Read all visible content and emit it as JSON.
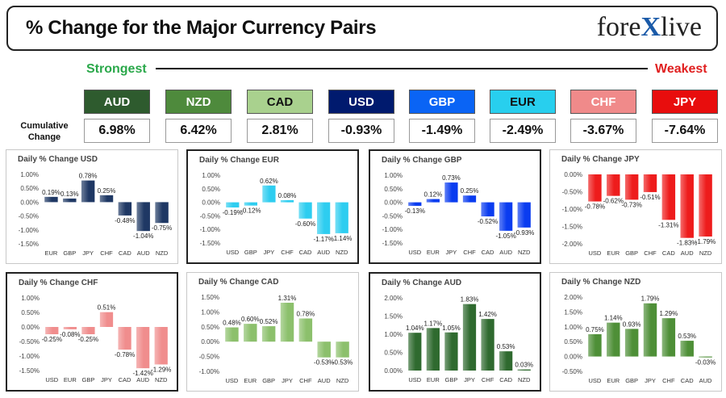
{
  "header": {
    "title": "% Change for the Major Currency Pairs",
    "logo_left": "fore",
    "logo_x": "X",
    "logo_right": "live"
  },
  "scale": {
    "strongest": "Strongest",
    "weakest": "Weakest"
  },
  "cumulative_label": "Cumulative Change",
  "currencies": [
    {
      "name": "AUD",
      "value": "6.98%",
      "color": "#2e5b2e",
      "text": "#ffffff"
    },
    {
      "name": "NZD",
      "value": "6.42%",
      "color": "#4e8a3c",
      "text": "#ffffff"
    },
    {
      "name": "CAD",
      "value": "2.81%",
      "color": "#a9d18e",
      "text": "#111111"
    },
    {
      "name": "USD",
      "value": "-0.93%",
      "color": "#001a6e",
      "text": "#ffffff"
    },
    {
      "name": "GBP",
      "value": "-1.49%",
      "color": "#0a64f5",
      "text": "#ffffff"
    },
    {
      "name": "EUR",
      "value": "-2.49%",
      "color": "#28cfee",
      "text": "#111111"
    },
    {
      "name": "CHF",
      "value": "-3.67%",
      "color": "#f08a8a",
      "text": "#ffffff"
    },
    {
      "name": "JPY",
      "value": "-7.64%",
      "color": "#e80d0d",
      "text": "#ffffff"
    }
  ],
  "chart_data": [
    {
      "type": "bar",
      "title": "Daily % Change USD",
      "color": "#1f3864",
      "categories": [
        "EUR",
        "GBP",
        "JPY",
        "CHF",
        "CAD",
        "AUD",
        "NZD"
      ],
      "values": [
        0.19,
        0.13,
        0.78,
        0.25,
        -0.48,
        -1.04,
        -0.75
      ],
      "labels": [
        "0.19%",
        "0.13%",
        "0.78%",
        "0.25%",
        "-0.48%",
        "-1.04%",
        "-0.75%"
      ],
      "ylim": [
        -1.5,
        1.0
      ],
      "yticks": [
        1.0,
        0.5,
        0.0,
        -0.5,
        -1.0,
        -1.5
      ],
      "ytick_labels": [
        "1.00%",
        "0.50%",
        "0.00%",
        "-0.50%",
        "-1.00%",
        "-1.50%"
      ]
    },
    {
      "type": "bar",
      "title": "Daily % Change EUR",
      "color": "#2ecdf0",
      "categories": [
        "USD",
        "GBP",
        "JPY",
        "CHF",
        "CAD",
        "AUD",
        "NZD"
      ],
      "values": [
        -0.19,
        -0.12,
        0.62,
        0.08,
        -0.6,
        -1.17,
        -1.14
      ],
      "labels": [
        "-0.19%",
        "-0.12%",
        "0.62%",
        "0.08%",
        "-0.60%",
        "-1.17%",
        "-1.14%"
      ],
      "ylim": [
        -1.5,
        1.0
      ],
      "yticks": [
        1.0,
        0.5,
        0.0,
        -0.5,
        -1.0,
        -1.5
      ],
      "ytick_labels": [
        "1.00%",
        "0.50%",
        "0.00%",
        "-0.50%",
        "-1.00%",
        "-1.50%"
      ]
    },
    {
      "type": "bar",
      "title": "Daily % Change GBP",
      "color": "#0a3cf0",
      "categories": [
        "USD",
        "EUR",
        "JPY",
        "CHF",
        "CAD",
        "AUD",
        "NZD"
      ],
      "values": [
        -0.13,
        0.12,
        0.73,
        0.25,
        -0.52,
        -1.05,
        -0.93
      ],
      "labels": [
        "-0.13%",
        "0.12%",
        "0.73%",
        "0.25%",
        "-0.52%",
        "-1.05%",
        "-0.93%"
      ],
      "ylim": [
        -1.5,
        1.0
      ],
      "yticks": [
        1.0,
        0.5,
        0.0,
        -0.5,
        -1.0,
        -1.5
      ],
      "ytick_labels": [
        "1.00%",
        "0.50%",
        "0.00%",
        "-0.50%",
        "-1.00%",
        "-1.50%"
      ]
    },
    {
      "type": "bar",
      "title": "Daily % Change JPY",
      "color": "#ee1c1c",
      "categories": [
        "USD",
        "EUR",
        "GBP",
        "CHF",
        "CAD",
        "AUD",
        "NZD"
      ],
      "values": [
        -0.78,
        -0.62,
        -0.73,
        -0.51,
        -1.31,
        -1.83,
        -1.79
      ],
      "labels": [
        "-0.78%",
        "-0.62%",
        "-0.73%",
        "-0.51%",
        "-1.31%",
        "-1.83%",
        "-1.79%"
      ],
      "ylim": [
        -2.0,
        0.0
      ],
      "yticks": [
        0.0,
        -0.5,
        -1.0,
        -1.5,
        -2.0
      ],
      "ytick_labels": [
        "0.00%",
        "-0.50%",
        "-1.00%",
        "-1.50%",
        "-2.00%"
      ]
    },
    {
      "type": "bar",
      "title": "Daily % Change CHF",
      "color": "#f08d8d",
      "categories": [
        "USD",
        "EUR",
        "GBP",
        "JPY",
        "CAD",
        "AUD",
        "NZD"
      ],
      "values": [
        -0.25,
        -0.08,
        -0.25,
        0.51,
        -0.78,
        -1.42,
        -1.29
      ],
      "labels": [
        "-0.25%",
        "-0.08%",
        "-0.25%",
        "0.51%",
        "-0.78%",
        "-1.42%",
        "-1.29%"
      ],
      "ylim": [
        -1.5,
        1.0
      ],
      "yticks": [
        1.0,
        0.5,
        0.0,
        -0.5,
        -1.0,
        -1.5
      ],
      "ytick_labels": [
        "1.00%",
        "0.50%",
        "0.00%",
        "-0.50%",
        "-1.00%",
        "-1.50%"
      ]
    },
    {
      "type": "bar",
      "title": "Daily % Change CAD",
      "color": "#8cc06c",
      "categories": [
        "USD",
        "EUR",
        "GBP",
        "JPY",
        "CHF",
        "AUD",
        "NZD"
      ],
      "values": [
        0.48,
        0.6,
        0.52,
        1.31,
        0.78,
        -0.53,
        -0.53
      ],
      "labels": [
        "0.48%",
        "0.60%",
        "0.52%",
        "1.31%",
        "0.78%",
        "-0.53%",
        "-0.53%"
      ],
      "ylim": [
        -1.0,
        1.5
      ],
      "yticks": [
        1.5,
        1.0,
        0.5,
        0.0,
        -0.5,
        -1.0
      ],
      "ytick_labels": [
        "1.50%",
        "1.00%",
        "0.50%",
        "0.00%",
        "-0.50%",
        "-1.00%"
      ]
    },
    {
      "type": "bar",
      "title": "Daily % Change AUD",
      "color": "#2f6a2f",
      "categories": [
        "USD",
        "EUR",
        "GBP",
        "JPY",
        "CHF",
        "CAD",
        "NZD"
      ],
      "values": [
        1.04,
        1.17,
        1.05,
        1.83,
        1.42,
        0.53,
        0.03
      ],
      "labels": [
        "1.04%",
        "1.17%",
        "1.05%",
        "1.83%",
        "1.42%",
        "0.53%",
        "0.03%"
      ],
      "ylim": [
        0.0,
        2.0
      ],
      "yticks": [
        2.0,
        1.5,
        1.0,
        0.5,
        0.0
      ],
      "ytick_labels": [
        "2.00%",
        "1.50%",
        "1.00%",
        "0.50%",
        "0.00%"
      ]
    },
    {
      "type": "bar",
      "title": "Daily % Change NZD",
      "color": "#4e8f37",
      "categories": [
        "USD",
        "EUR",
        "GBP",
        "JPY",
        "CHF",
        "CAD",
        "AUD"
      ],
      "values": [
        0.75,
        1.14,
        0.93,
        1.79,
        1.29,
        0.53,
        -0.03
      ],
      "labels": [
        "0.75%",
        "1.14%",
        "0.93%",
        "1.79%",
        "1.29%",
        "0.53%",
        "-0.03%"
      ],
      "ylim": [
        -0.5,
        2.0
      ],
      "yticks": [
        2.0,
        1.5,
        1.0,
        0.5,
        0.0,
        -0.5
      ],
      "ytick_labels": [
        "2.00%",
        "1.50%",
        "1.00%",
        "0.50%",
        "0.00%",
        "-0.50%"
      ]
    }
  ]
}
